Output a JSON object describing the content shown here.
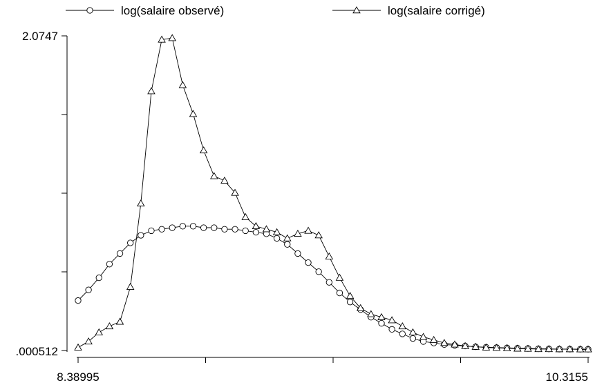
{
  "chart_data": {
    "type": "line",
    "title": "",
    "xlabel": "",
    "ylabel": "",
    "xlim": [
      8.38995,
      10.3155
    ],
    "ylim": [
      0.000512,
      2.0747
    ],
    "x_tick_labels": [
      "8.38995",
      "10.3155"
    ],
    "y_tick_labels": [
      "2.0747",
      ".000512"
    ],
    "x_tick_count": 5,
    "y_tick_count": 5,
    "legend_position": "top",
    "grid": false,
    "series": [
      {
        "name": "log(salaire observé)",
        "marker": "circle",
        "x": [
          8.38995,
          8.4294,
          8.4689,
          8.5084,
          8.5479,
          8.5874,
          8.6269,
          8.6664,
          8.7059,
          8.7454,
          8.7849,
          8.8244,
          8.8639,
          8.9034,
          8.9429,
          8.9824,
          9.0219,
          9.0614,
          9.1009,
          9.1404,
          9.1799,
          9.2194,
          9.2589,
          9.2984,
          9.3379,
          9.3774,
          9.4169,
          9.4564,
          9.4959,
          9.5354,
          9.5749,
          9.6144,
          9.6539,
          9.6934,
          9.7329,
          9.7724,
          9.8119,
          9.8514,
          9.8909,
          9.9304,
          9.9699,
          10.0094,
          10.0489,
          10.0884,
          10.1279,
          10.1674,
          10.2069,
          10.2464,
          10.2859,
          10.3155
        ],
        "y": [
          0.33,
          0.4,
          0.48,
          0.57,
          0.64,
          0.71,
          0.76,
          0.79,
          0.8,
          0.81,
          0.82,
          0.82,
          0.81,
          0.81,
          0.8,
          0.8,
          0.79,
          0.78,
          0.77,
          0.74,
          0.7,
          0.64,
          0.58,
          0.52,
          0.45,
          0.38,
          0.32,
          0.27,
          0.22,
          0.18,
          0.14,
          0.11,
          0.08,
          0.06,
          0.05,
          0.04,
          0.035,
          0.03,
          0.025,
          0.022,
          0.02,
          0.018,
          0.016,
          0.014,
          0.012,
          0.011,
          0.01,
          0.01,
          0.009,
          0.009
        ]
      },
      {
        "name": "log(salaire corrigé)",
        "marker": "triangle",
        "x": [
          8.38995,
          8.4294,
          8.4689,
          8.5084,
          8.5479,
          8.5874,
          8.6269,
          8.6664,
          8.7059,
          8.7454,
          8.7849,
          8.8244,
          8.8639,
          8.9034,
          8.9429,
          8.9824,
          9.0219,
          9.0614,
          9.1009,
          9.1404,
          9.1799,
          9.2194,
          9.2589,
          9.2984,
          9.3379,
          9.3774,
          9.4169,
          9.4564,
          9.4959,
          9.5354,
          9.5749,
          9.6144,
          9.6539,
          9.6934,
          9.7329,
          9.7724,
          9.8119,
          9.8514,
          9.8909,
          9.9304,
          9.9699,
          10.0094,
          10.0489,
          10.0884,
          10.1279,
          10.1674,
          10.2069,
          10.2464,
          10.2859,
          10.3155
        ],
        "y": [
          0.02,
          0.06,
          0.12,
          0.16,
          0.19,
          0.42,
          0.97,
          1.71,
          2.05,
          2.06,
          1.75,
          1.56,
          1.32,
          1.15,
          1.12,
          1.04,
          0.88,
          0.82,
          0.8,
          0.78,
          0.74,
          0.77,
          0.79,
          0.76,
          0.62,
          0.48,
          0.36,
          0.28,
          0.24,
          0.22,
          0.2,
          0.16,
          0.12,
          0.09,
          0.07,
          0.05,
          0.04,
          0.03,
          0.025,
          0.02,
          0.018,
          0.015,
          0.013,
          0.012,
          0.01,
          0.01,
          0.009,
          0.009,
          0.008,
          0.008
        ]
      }
    ]
  }
}
